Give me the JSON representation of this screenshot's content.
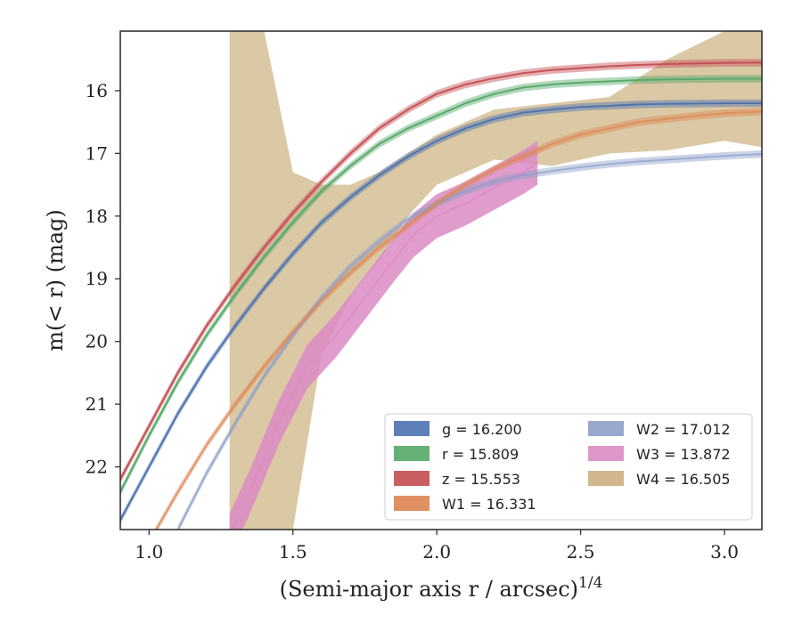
{
  "chart_data": {
    "type": "line",
    "xlabel": "(Semi-major axis r / arcsec)",
    "xlabel_exponent": "1/4",
    "ylabel": "m(< r) (mag)",
    "xlim": [
      0.9,
      3.13
    ],
    "ylim": [
      23.0,
      15.05
    ],
    "y_inverted": true,
    "grid": false,
    "legend_position": "lower-right",
    "legend_columns": 2,
    "x_ticks": [
      "1.0",
      "1.5",
      "2.0",
      "2.5",
      "3.0"
    ],
    "y_ticks": [
      "16",
      "17",
      "18",
      "19",
      "20",
      "21",
      "22"
    ],
    "series": [
      {
        "name": "g",
        "legend": "g = 16.200",
        "color": "#4c72b0",
        "x": [
          0.9,
          1.0,
          1.1,
          1.2,
          1.3,
          1.4,
          1.5,
          1.6,
          1.7,
          1.8,
          1.9,
          2.0,
          2.1,
          2.2,
          2.3,
          2.4,
          2.5,
          2.6,
          2.7,
          2.8,
          2.9,
          3.0,
          3.13
        ],
        "y": [
          22.85,
          22.0,
          21.15,
          20.4,
          19.75,
          19.15,
          18.6,
          18.1,
          17.7,
          17.35,
          17.05,
          16.8,
          16.6,
          16.45,
          16.35,
          16.3,
          16.26,
          16.24,
          16.22,
          16.21,
          16.205,
          16.2,
          16.2
        ],
        "band": 0.06
      },
      {
        "name": "r",
        "legend": "r = 15.809",
        "color": "#55a868",
        "x": [
          0.9,
          1.0,
          1.1,
          1.2,
          1.3,
          1.4,
          1.5,
          1.6,
          1.7,
          1.8,
          1.9,
          2.0,
          2.1,
          2.2,
          2.3,
          2.4,
          2.5,
          2.6,
          2.7,
          2.8,
          2.9,
          3.0,
          3.13
        ],
        "y": [
          22.4,
          21.5,
          20.65,
          19.9,
          19.25,
          18.65,
          18.1,
          17.6,
          17.2,
          16.85,
          16.6,
          16.4,
          16.2,
          16.05,
          15.95,
          15.9,
          15.87,
          15.85,
          15.83,
          15.82,
          15.815,
          15.81,
          15.81
        ],
        "band": 0.06
      },
      {
        "name": "z",
        "legend": "z = 15.553",
        "color": "#c44e52",
        "x": [
          0.9,
          1.0,
          1.1,
          1.2,
          1.3,
          1.4,
          1.5,
          1.6,
          1.7,
          1.8,
          1.9,
          2.0,
          2.1,
          2.2,
          2.3,
          2.4,
          2.5,
          2.6,
          2.7,
          2.8,
          2.9,
          3.0,
          3.13
        ],
        "y": [
          22.2,
          21.35,
          20.5,
          19.75,
          19.1,
          18.5,
          17.95,
          17.45,
          17.0,
          16.6,
          16.3,
          16.05,
          15.9,
          15.8,
          15.72,
          15.67,
          15.64,
          15.61,
          15.59,
          15.575,
          15.565,
          15.555,
          15.553
        ],
        "band": 0.06
      },
      {
        "name": "W1",
        "legend": "W1 = 16.331",
        "color": "#dd8452",
        "x": [
          0.9,
          1.0,
          1.1,
          1.2,
          1.3,
          1.4,
          1.5,
          1.6,
          1.7,
          1.8,
          1.9,
          2.0,
          2.1,
          2.2,
          2.3,
          2.4,
          2.5,
          2.6,
          2.7,
          2.8,
          2.9,
          3.0,
          3.13
        ],
        "y": [
          24.0,
          23.2,
          22.4,
          21.65,
          21.0,
          20.4,
          19.85,
          19.35,
          18.9,
          18.5,
          18.15,
          17.8,
          17.5,
          17.25,
          17.05,
          16.85,
          16.7,
          16.6,
          16.5,
          16.45,
          16.4,
          16.36,
          16.33
        ],
        "band": 0.06
      },
      {
        "name": "W2",
        "legend": "W2 = 17.012",
        "color": "#8c9dc8",
        "x": [
          1.1,
          1.2,
          1.3,
          1.4,
          1.5,
          1.6,
          1.7,
          1.8,
          1.9,
          2.0,
          2.1,
          2.2,
          2.3,
          2.4,
          2.5,
          2.6,
          2.7,
          2.8,
          2.9,
          3.0,
          3.13
        ],
        "y": [
          23.0,
          22.1,
          21.3,
          20.55,
          19.9,
          19.3,
          18.8,
          18.4,
          18.05,
          17.8,
          17.6,
          17.45,
          17.35,
          17.28,
          17.22,
          17.17,
          17.13,
          17.1,
          17.07,
          17.04,
          17.01
        ],
        "band": 0.06
      },
      {
        "name": "W3",
        "legend": "W3 = 13.872",
        "color": "#da8bc3",
        "x": [
          1.28,
          1.35,
          1.45,
          1.55,
          1.65,
          1.75,
          1.85,
          1.92,
          2.0,
          2.1,
          2.2,
          2.3,
          2.35
        ],
        "y": [
          23.1,
          22.4,
          21.3,
          20.4,
          19.9,
          19.3,
          18.7,
          18.3,
          18.0,
          17.8,
          17.55,
          17.3,
          17.15
        ],
        "band": 0.35
      },
      {
        "name": "W4",
        "legend": "W4 = 16.505",
        "color": "#ccb07f",
        "x": [
          1.28,
          1.4,
          1.5,
          1.6,
          1.7,
          1.8,
          1.9,
          2.0,
          2.2,
          2.4,
          2.6,
          2.8,
          3.0,
          3.13
        ],
        "y_upper": [
          15.05,
          15.05,
          17.3,
          17.5,
          17.5,
          17.3,
          17.0,
          16.7,
          16.3,
          16.2,
          16.1,
          15.5,
          15.05,
          15.05
        ],
        "y_lower": [
          23.0,
          23.0,
          23.0,
          20.2,
          19.3,
          18.7,
          18.0,
          17.5,
          17.1,
          17.2,
          17.0,
          16.95,
          16.8,
          16.9
        ]
      }
    ]
  }
}
